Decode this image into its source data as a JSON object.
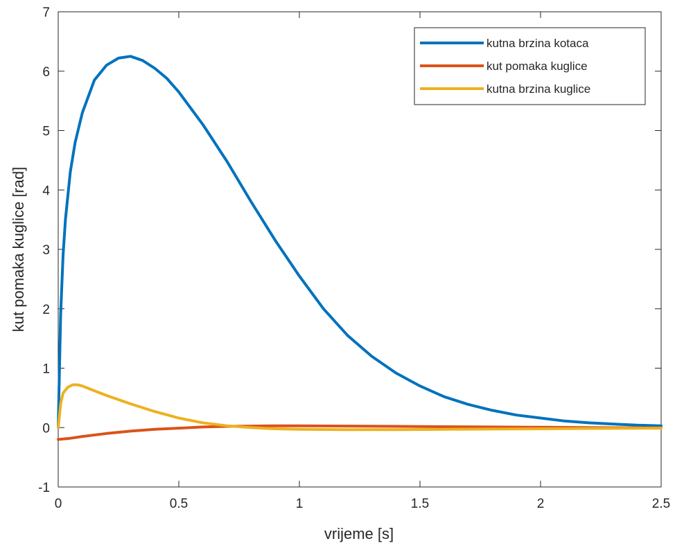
{
  "chart_data": {
    "type": "line",
    "title": "",
    "xlabel": "vrijeme [s]",
    "ylabel": "kut pomaka kuglice [rad]",
    "xlim": [
      0,
      2.5
    ],
    "ylim": [
      -1,
      7
    ],
    "xticks": [
      0,
      0.5,
      1,
      1.5,
      2,
      2.5
    ],
    "xtick_labels": [
      "0",
      "0.5",
      "1",
      "1.5",
      "2",
      "2.5"
    ],
    "yticks": [
      -1,
      0,
      1,
      2,
      3,
      4,
      5,
      6,
      7
    ],
    "ytick_labels": [
      "-1",
      "0",
      "1",
      "2",
      "3",
      "4",
      "5",
      "6",
      "7"
    ],
    "grid": false,
    "legend_position": "top-right",
    "series": [
      {
        "name": "kutna brzina kotaca",
        "color": "#0072BD",
        "x": [
          0,
          0.01,
          0.02,
          0.03,
          0.05,
          0.07,
          0.1,
          0.15,
          0.2,
          0.25,
          0.3,
          0.35,
          0.4,
          0.45,
          0.5,
          0.6,
          0.7,
          0.8,
          0.9,
          1.0,
          1.1,
          1.2,
          1.3,
          1.4,
          1.5,
          1.6,
          1.7,
          1.8,
          1.9,
          2.0,
          2.1,
          2.2,
          2.3,
          2.4,
          2.5
        ],
        "y": [
          0,
          1.9,
          2.9,
          3.5,
          4.3,
          4.8,
          5.3,
          5.85,
          6.1,
          6.22,
          6.25,
          6.18,
          6.05,
          5.88,
          5.65,
          5.1,
          4.48,
          3.8,
          3.15,
          2.55,
          2.0,
          1.55,
          1.2,
          0.92,
          0.7,
          0.52,
          0.39,
          0.29,
          0.21,
          0.16,
          0.11,
          0.08,
          0.06,
          0.04,
          0.03
        ]
      },
      {
        "name": "kut pomaka kuglice",
        "color": "#D95319",
        "x": [
          0,
          0.05,
          0.1,
          0.2,
          0.3,
          0.4,
          0.5,
          0.6,
          0.7,
          0.8,
          0.9,
          1.0,
          1.2,
          1.4,
          1.6,
          1.8,
          2.0,
          2.2,
          2.5
        ],
        "y": [
          -0.2,
          -0.18,
          -0.15,
          -0.1,
          -0.06,
          -0.03,
          -0.01,
          0.01,
          0.02,
          0.025,
          0.03,
          0.03,
          0.025,
          0.02,
          0.015,
          0.01,
          0.005,
          0.0,
          -0.005
        ]
      },
      {
        "name": "kutna brzina kuglice",
        "color": "#EDB120",
        "x": [
          0,
          0.01,
          0.02,
          0.04,
          0.06,
          0.08,
          0.1,
          0.15,
          0.2,
          0.3,
          0.4,
          0.5,
          0.6,
          0.7,
          0.8,
          0.9,
          1.0,
          1.2,
          1.4,
          1.6,
          1.8,
          2.0,
          2.2,
          2.5
        ],
        "y": [
          0,
          0.4,
          0.58,
          0.68,
          0.72,
          0.72,
          0.7,
          0.62,
          0.54,
          0.4,
          0.27,
          0.16,
          0.08,
          0.03,
          0.0,
          -0.02,
          -0.03,
          -0.035,
          -0.035,
          -0.03,
          -0.025,
          -0.02,
          -0.015,
          -0.01
        ]
      }
    ]
  }
}
